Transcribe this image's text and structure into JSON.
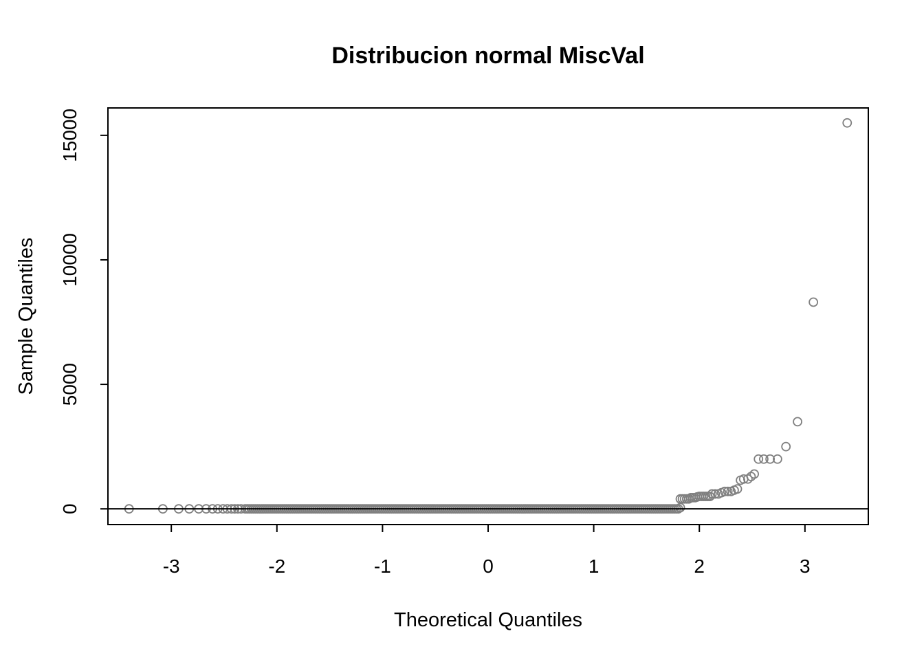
{
  "chart_data": {
    "type": "scatter",
    "title": "Distribucion normal MiscVal",
    "xlabel": "Theoretical Quantiles",
    "ylabel": "Sample Quantiles",
    "xlim": [
      -3.6,
      3.6
    ],
    "ylim": [
      -630,
      16100
    ],
    "x_ticks": [
      -3,
      -2,
      -1,
      0,
      1,
      2,
      3
    ],
    "x_tick_labels": [
      "-3",
      "-2",
      "-1",
      "0",
      "1",
      "2",
      "3"
    ],
    "y_ticks": [
      0,
      5000,
      10000,
      15000
    ],
    "y_tick_labels": [
      "0",
      "5000",
      "10000",
      "15000"
    ],
    "reference_line": {
      "intercept": 0,
      "slope": 0
    },
    "grid": false,
    "marker": "open-circle",
    "point_color": "#808080",
    "line_color": "#000000",
    "zero_run": {
      "x_from": -2.3,
      "x_to": 1.82,
      "y": 0
    },
    "points": [
      {
        "x": -3.4,
        "y": 0
      },
      {
        "x": -3.08,
        "y": 0
      },
      {
        "x": -2.93,
        "y": 0
      },
      {
        "x": -2.83,
        "y": 0
      },
      {
        "x": -2.74,
        "y": 0
      },
      {
        "x": -2.67,
        "y": 0
      },
      {
        "x": -2.61,
        "y": 0
      },
      {
        "x": -2.56,
        "y": 0
      },
      {
        "x": -2.51,
        "y": 0
      },
      {
        "x": -2.47,
        "y": 0
      },
      {
        "x": -2.43,
        "y": 0
      },
      {
        "x": -2.4,
        "y": 0
      },
      {
        "x": -2.37,
        "y": 0
      },
      {
        "x": -2.34,
        "y": 0
      },
      {
        "x": 1.82,
        "y": 50
      },
      {
        "x": 1.82,
        "y": 400
      },
      {
        "x": 1.84,
        "y": 400
      },
      {
        "x": 1.86,
        "y": 400
      },
      {
        "x": 1.88,
        "y": 400
      },
      {
        "x": 1.9,
        "y": 400
      },
      {
        "x": 1.92,
        "y": 450
      },
      {
        "x": 1.94,
        "y": 450
      },
      {
        "x": 1.96,
        "y": 450
      },
      {
        "x": 1.98,
        "y": 480
      },
      {
        "x": 2.0,
        "y": 500
      },
      {
        "x": 2.02,
        "y": 500
      },
      {
        "x": 2.04,
        "y": 500
      },
      {
        "x": 2.06,
        "y": 500
      },
      {
        "x": 2.08,
        "y": 500
      },
      {
        "x": 2.1,
        "y": 500
      },
      {
        "x": 2.12,
        "y": 600
      },
      {
        "x": 2.15,
        "y": 600
      },
      {
        "x": 2.18,
        "y": 600
      },
      {
        "x": 2.21,
        "y": 650
      },
      {
        "x": 2.24,
        "y": 700
      },
      {
        "x": 2.27,
        "y": 700
      },
      {
        "x": 2.3,
        "y": 700
      },
      {
        "x": 2.33,
        "y": 750
      },
      {
        "x": 2.36,
        "y": 800
      },
      {
        "x": 2.39,
        "y": 1150
      },
      {
        "x": 2.42,
        "y": 1200
      },
      {
        "x": 2.46,
        "y": 1200
      },
      {
        "x": 2.49,
        "y": 1300
      },
      {
        "x": 2.52,
        "y": 1400
      },
      {
        "x": 2.56,
        "y": 2000
      },
      {
        "x": 2.61,
        "y": 2000
      },
      {
        "x": 2.67,
        "y": 2000
      },
      {
        "x": 2.74,
        "y": 2000
      },
      {
        "x": 2.82,
        "y": 2500
      },
      {
        "x": 2.93,
        "y": 3500
      },
      {
        "x": 3.08,
        "y": 8300
      },
      {
        "x": 3.4,
        "y": 15500
      }
    ]
  }
}
